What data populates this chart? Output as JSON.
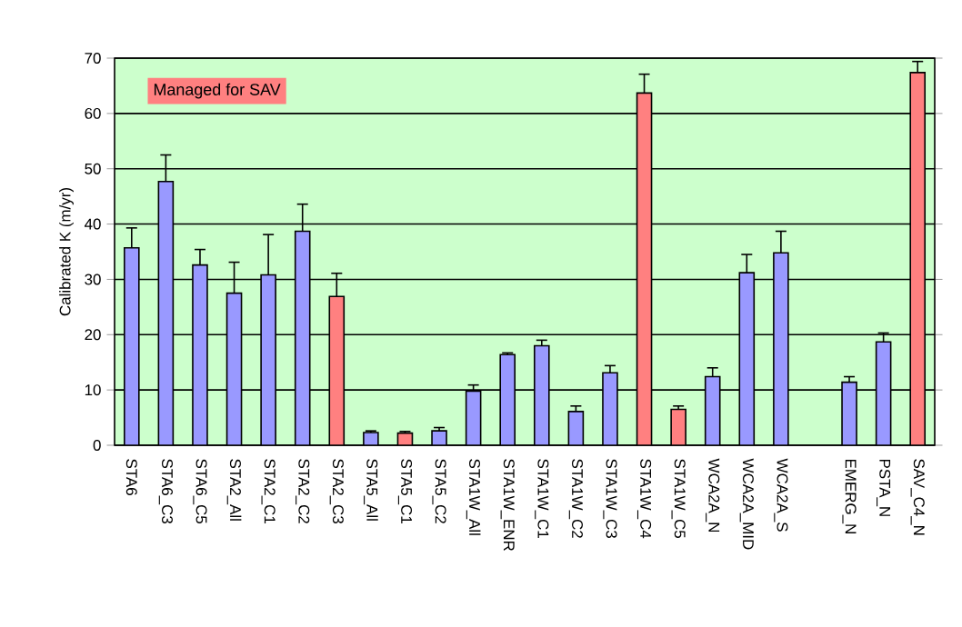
{
  "chart_data": {
    "type": "bar",
    "ylabel": "Calibrated K (m/yr)",
    "annotations": [
      "Managed for SAV"
    ],
    "categories": [
      "STA6",
      "STA6_C3",
      "STA6_C5",
      "STA2_All",
      "STA2_C1",
      "STA2_C2",
      "STA2_C3",
      "STA5_All",
      "STA5_C1",
      "STA5_C2",
      "STA1W_All",
      "STA1W_ENR",
      "STA1W_C1",
      "STA1W_C2",
      "STA1W_C3",
      "STA1W_C4",
      "STA1W_C5",
      "WCA2A_N",
      "WCA2A_MID",
      "WCA2A_S",
      null,
      "EMERG_N",
      "PSTA_N",
      "SAV_C4_N"
    ],
    "values": [
      35.7,
      47.7,
      32.6,
      27.5,
      30.8,
      38.7,
      26.9,
      2.3,
      2.2,
      2.6,
      9.8,
      16.4,
      18.0,
      6.1,
      13.1,
      63.7,
      6.5,
      12.4,
      31.2,
      34.8,
      null,
      11.4,
      18.7,
      67.4
    ],
    "errors": [
      3.6,
      4.8,
      2.8,
      5.6,
      7.3,
      4.9,
      4.2,
      0.3,
      0.3,
      0.6,
      1.1,
      0.3,
      1.0,
      1.0,
      1.3,
      3.4,
      0.6,
      1.6,
      3.3,
      3.9,
      null,
      1.0,
      1.6,
      2.0
    ],
    "colors": [
      "#9999ff",
      "#9999ff",
      "#9999ff",
      "#9999ff",
      "#9999ff",
      "#9999ff",
      "#ff8080",
      "#9999ff",
      "#ff8080",
      "#9999ff",
      "#9999ff",
      "#9999ff",
      "#9999ff",
      "#9999ff",
      "#9999ff",
      "#ff8080",
      "#ff8080",
      "#9999ff",
      "#9999ff",
      "#9999ff",
      "#9999ff",
      "#9999ff",
      "#9999ff",
      "#ff8080"
    ],
    "ylim": [
      0,
      70
    ],
    "yticks": [
      0,
      10,
      20,
      30,
      40,
      50,
      60,
      70
    ],
    "grid": "y"
  }
}
